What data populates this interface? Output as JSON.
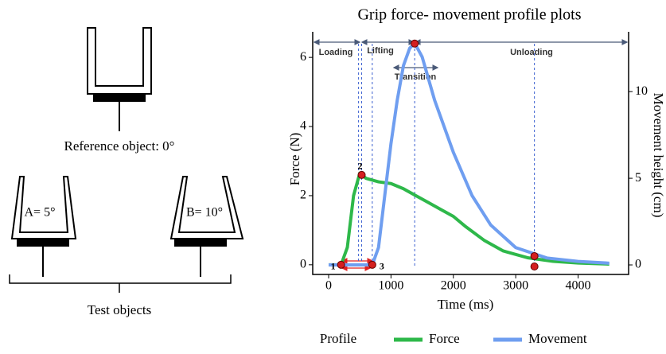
{
  "diagram": {
    "reference_label": "Reference object: 0°",
    "object_a_label": "A= 5°",
    "object_b_label": "B= 10°",
    "test_label": "Test objects"
  },
  "chart_data": {
    "type": "line",
    "title": "Grip force- movement profile plots",
    "x_label": "Time (ms)",
    "y_label": "Force (N)",
    "y2_label": "Movement height (cm)",
    "xlim": [
      -255,
      4810
    ],
    "xticks": [
      0,
      1000,
      2000,
      3000,
      4000
    ],
    "ylim": [
      -0.28,
      6.74
    ],
    "yticks": [
      0,
      2,
      4,
      6
    ],
    "y2lim": [
      -0.55,
      13.45
    ],
    "y2ticks": [
      0,
      5,
      10
    ],
    "legend_title": "Profile",
    "series": [
      {
        "name": "Force",
        "color": "#2eb84a",
        "axis": "y",
        "x": [
          0,
          200,
          300,
          400,
          500,
          600,
          800,
          1000,
          1200,
          1400,
          1600,
          1800,
          2000,
          2200,
          2500,
          2800,
          3200,
          3600,
          4000,
          4500
        ],
        "values": [
          0,
          0,
          0.5,
          2,
          2.65,
          2.5,
          2.4,
          2.35,
          2.2,
          2,
          1.8,
          1.6,
          1.4,
          1.1,
          0.7,
          0.4,
          0.2,
          0.1,
          0.05,
          0.02
        ]
      },
      {
        "name": "Movement",
        "color": "#6f9ef0",
        "axis": "y2",
        "x": [
          0,
          500,
          700,
          800,
          900,
          1000,
          1100,
          1200,
          1300,
          1380,
          1500,
          1700,
          2000,
          2300,
          2600,
          3000,
          3500,
          4000,
          4500
        ],
        "values": [
          0,
          0,
          0,
          1,
          4,
          7,
          9.5,
          11.5,
          12.5,
          12.8,
          12,
          9.5,
          6.5,
          4,
          2.3,
          1,
          0.4,
          0.2,
          0.1
        ]
      }
    ],
    "markers": {
      "color": "#d42020",
      "x": [
        200,
        530,
        700,
        1380,
        3300,
        3300
      ],
      "values": [
        0,
        2.6,
        0,
        6.4,
        0.25,
        -0.05
      ]
    },
    "point_labels": [
      "1",
      "2",
      "3"
    ],
    "vlines": [
      480,
      530,
      700,
      1380,
      3300
    ],
    "phases": [
      "Loading",
      "Lifting",
      "Transition",
      "Unloading"
    ]
  }
}
